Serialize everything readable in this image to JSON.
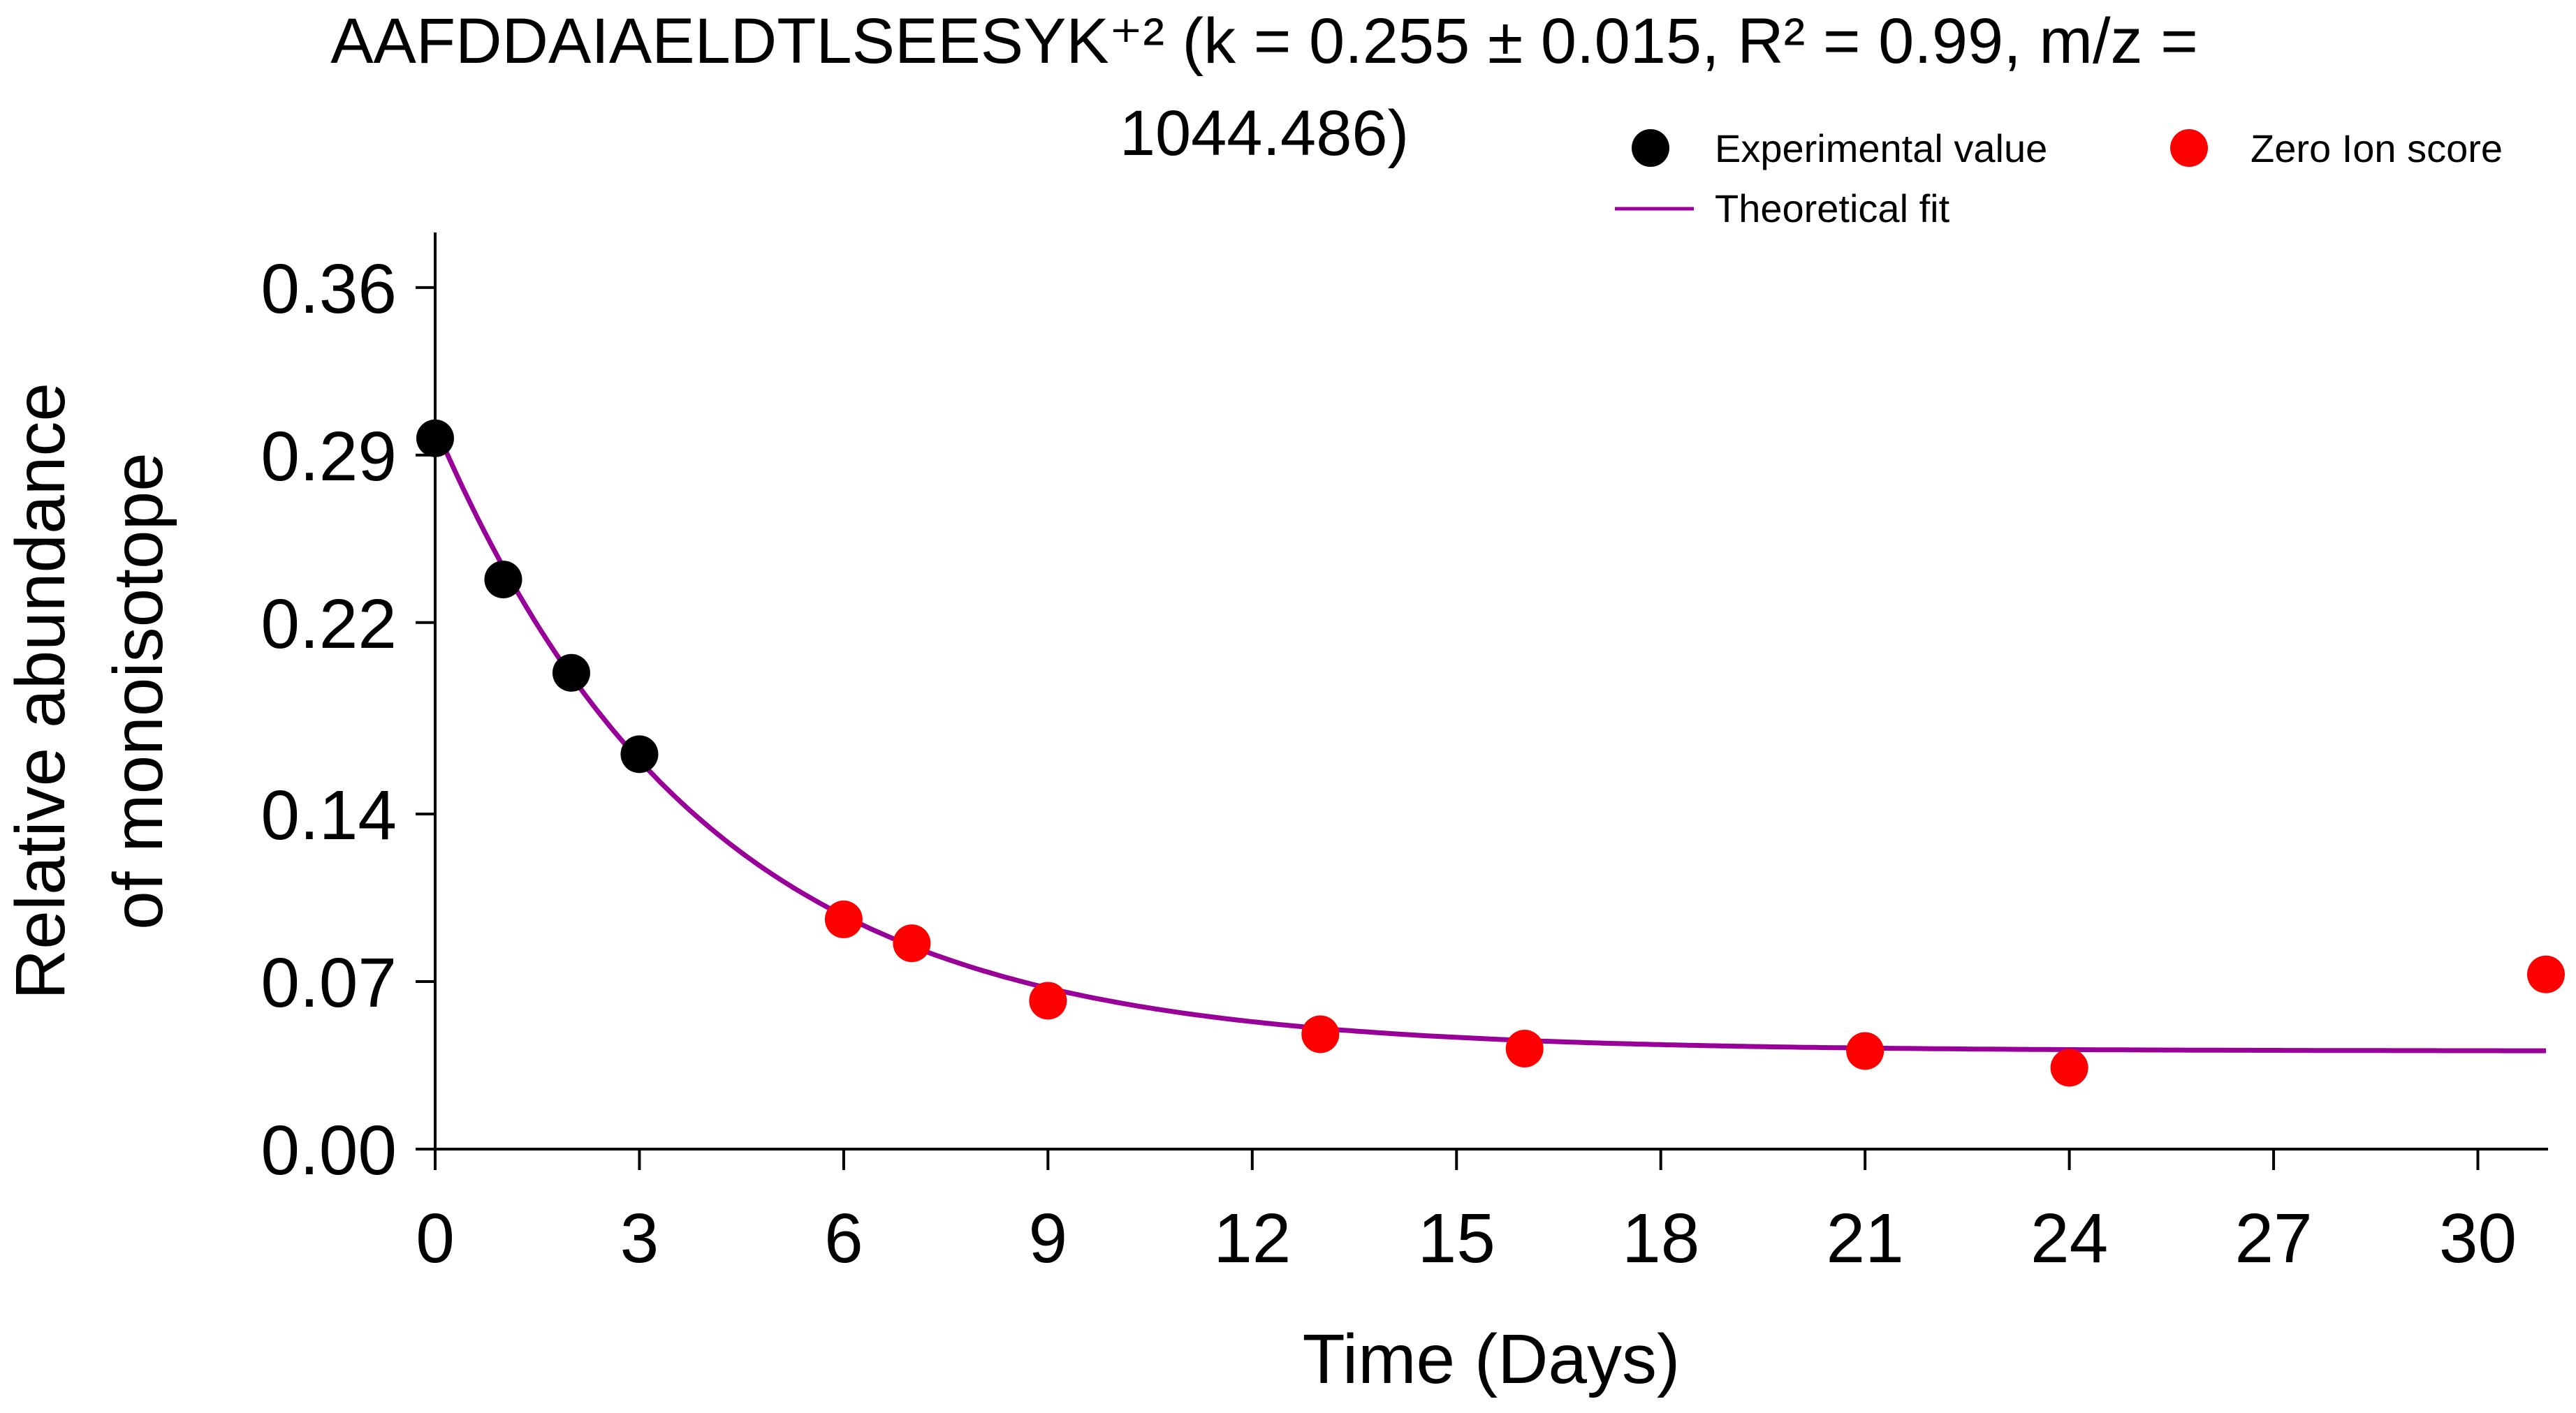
{
  "chart_data": {
    "type": "scatter",
    "title_line1": "AAFDDAIAELDTLSEESYK⁺² (k = 0.255 ± 0.015, R² = 0.99, m/z =",
    "title_line2": "1044.486)",
    "xlabel": "Time (Days)",
    "ylabel_line1": "Relative abundance",
    "ylabel_line2": "of monoisotope",
    "xlim": [
      0,
      31
    ],
    "ylim": [
      0.0,
      0.383
    ],
    "x_ticks": [
      0,
      3,
      6,
      9,
      12,
      15,
      18,
      21,
      24,
      27,
      30
    ],
    "y_ticks": [
      0.0,
      0.07,
      0.14,
      0.22,
      0.29,
      0.36
    ],
    "y_tick_labels": [
      "0.00",
      "0.07",
      "0.14",
      "0.22",
      "0.29",
      "0.36"
    ],
    "x_tick_labels": [
      "0",
      "3",
      "6",
      "9",
      "12",
      "15",
      "18",
      "21",
      "24",
      "27",
      "30"
    ],
    "grid": false,
    "legend": {
      "placement": "top-right",
      "entries": [
        {
          "label": "Experimental value",
          "marker": "circle",
          "color": "#000000"
        },
        {
          "label": "Zero Ion score",
          "marker": "circle",
          "color": "#ff0000"
        },
        {
          "label": "Theoretical fit",
          "marker": "line",
          "color": "#990099"
        }
      ]
    },
    "series": [
      {
        "name": "Experimental value",
        "kind": "scatter",
        "color": "#000000",
        "x": [
          0,
          1,
          2,
          3
        ],
        "y": [
          0.297,
          0.238,
          0.199,
          0.165
        ]
      },
      {
        "name": "Zero Ion score",
        "kind": "scatter",
        "color": "#ff0000",
        "x": [
          6,
          7,
          9,
          13,
          16,
          21,
          24,
          31
        ],
        "y": [
          0.096,
          0.086,
          0.062,
          0.048,
          0.042,
          0.041,
          0.034,
          0.073
        ]
      },
      {
        "name": "Theoretical fit",
        "kind": "line",
        "color": "#990099",
        "model": "exponential decay",
        "k": 0.255,
        "y0": 0.302,
        "y_inf": 0.041,
        "x_range": [
          0,
          31
        ]
      }
    ]
  }
}
